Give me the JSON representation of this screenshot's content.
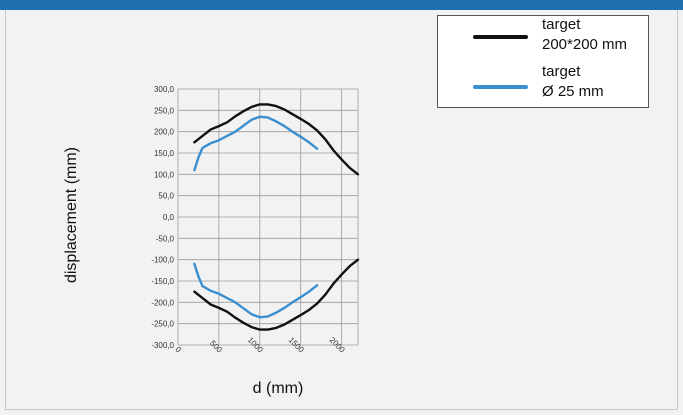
{
  "chart_data": {
    "type": "line",
    "xlabel": "d (mm)",
    "ylabel": "displacement (mm)",
    "xlim": [
      0,
      2200
    ],
    "ylim": [
      -300,
      300
    ],
    "x_ticks": [
      "0",
      "500",
      "1000",
      "1500",
      "2000"
    ],
    "y_ticks": [
      "300,0",
      "250,0",
      "200,0",
      "150,0",
      "100,0",
      "50,0",
      "0,0",
      "-50,0",
      "-100,0",
      "-150,0",
      "-200,0",
      "-250,0",
      "-300,0"
    ],
    "grid": true,
    "legend_position": "top-right",
    "series": [
      {
        "name": "target 200*200 mm",
        "color": "#111111",
        "x": [
          200,
          300,
          400,
          500,
          600,
          700,
          800,
          900,
          1000,
          1100,
          1200,
          1300,
          1400,
          1500,
          1600,
          1700,
          1800,
          1900,
          2000,
          2100,
          2200
        ],
        "y_upper": [
          175,
          190,
          205,
          213,
          222,
          236,
          248,
          258,
          264,
          264,
          260,
          252,
          241,
          230,
          218,
          203,
          182,
          156,
          135,
          115,
          100
        ],
        "y_lower": [
          -175,
          -190,
          -205,
          -213,
          -222,
          -236,
          -248,
          -258,
          -264,
          -264,
          -260,
          -252,
          -241,
          -230,
          -218,
          -203,
          -182,
          -156,
          -135,
          -115,
          -100
        ]
      },
      {
        "name": "target Ø 25 mm",
        "color": "#3a8fd0",
        "x": [
          200,
          250,
          300,
          400,
          500,
          600,
          700,
          800,
          900,
          1000,
          1100,
          1200,
          1300,
          1400,
          1500,
          1600,
          1700
        ],
        "y_upper": [
          110,
          140,
          162,
          173,
          180,
          190,
          200,
          214,
          228,
          235,
          233,
          224,
          213,
          200,
          188,
          175,
          160
        ],
        "y_lower": [
          -110,
          -140,
          -162,
          -173,
          -180,
          -190,
          -200,
          -214,
          -228,
          -235,
          -233,
          -224,
          -213,
          -200,
          -188,
          -175,
          -160
        ]
      }
    ]
  },
  "legend": {
    "entry1_line1": "target",
    "entry1_line2": "200*200 mm",
    "entry2_line1": "target",
    "entry2_line2": "Ø 25 mm"
  }
}
